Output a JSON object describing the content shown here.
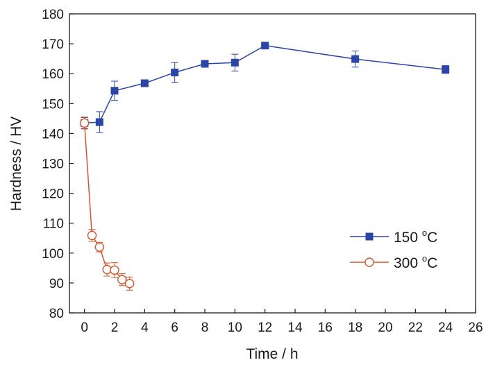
{
  "chart_data": {
    "type": "line",
    "xlabel": "Time / h",
    "ylabel": "Hardness / HV",
    "xlim": [
      -1,
      26
    ],
    "ylim": [
      80,
      180
    ],
    "xticks": [
      0,
      2,
      4,
      6,
      8,
      10,
      12,
      14,
      16,
      18,
      20,
      22,
      24,
      26
    ],
    "yticks": [
      80,
      90,
      100,
      110,
      120,
      130,
      140,
      150,
      160,
      170,
      180
    ],
    "grid": false,
    "legend_position": "bottom-right",
    "series": [
      {
        "name_main": "150 ",
        "name_sup": "o",
        "name_unit": "C",
        "marker": "filled-square",
        "color": "#2a45a8",
        "x": [
          0,
          1,
          2,
          4,
          6,
          8,
          10,
          12,
          18,
          24
        ],
        "y": [
          143.5,
          143.8,
          154.3,
          156.8,
          160.4,
          163.3,
          163.7,
          169.4,
          164.9,
          161.4
        ],
        "err": [
          1.8,
          3.5,
          3.2,
          1.0,
          3.3,
          0.8,
          2.8,
          0.6,
          2.7,
          1.3
        ]
      },
      {
        "name_main": "300 ",
        "name_sup": "o",
        "name_unit": "C",
        "marker": "open-circle",
        "color": "#d9542b",
        "x": [
          0,
          0.5,
          1,
          1.5,
          2,
          2.5,
          3
        ],
        "y": [
          143.5,
          105.9,
          102.0,
          94.5,
          94.3,
          91.1,
          89.8
        ],
        "err": [
          2.0,
          2.0,
          1.6,
          2.2,
          2.5,
          2.0,
          2.2
        ]
      }
    ]
  }
}
